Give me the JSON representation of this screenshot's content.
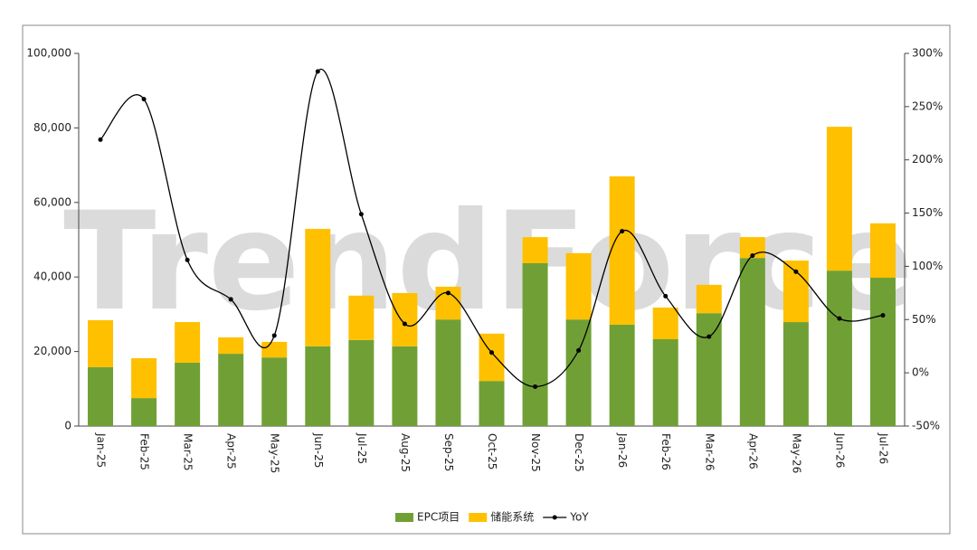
{
  "chart_data": {
    "type": "bar",
    "watermark": "TrendForce",
    "categories": [
      "Jan-25",
      "Feb-25",
      "Mar-25",
      "Apr-25",
      "May-25",
      "Jun-25",
      "Jul-25",
      "Aug-25",
      "Sep-25",
      "Oct-25",
      "Nov-25",
      "Dec-25",
      "Jan-26",
      "Feb-26",
      "Mar-26",
      "Apr-26",
      "May-26",
      "Jun-26",
      "Jul-26"
    ],
    "stacked": true,
    "series": [
      {
        "name": "EPC项目",
        "color": "#70a035",
        "values": [
          15.8,
          7.5,
          17.0,
          19.4,
          18.4,
          21.4,
          23.1,
          21.4,
          28.6,
          12.1,
          43.7,
          28.6,
          27.2,
          23.3,
          30.3,
          45.1,
          27.9,
          41.7,
          39.8
        ]
      },
      {
        "name": "储能系统",
        "color": "#ffc000",
        "values": [
          12.6,
          10.7,
          10.9,
          4.4,
          4.2,
          31.5,
          11.9,
          14.3,
          8.8,
          12.7,
          7.0,
          17.8,
          39.8,
          8.5,
          7.6,
          5.6,
          16.5,
          38.6,
          14.6
        ]
      },
      {
        "name": "YoY",
        "color": "#000000",
        "type": "line",
        "axis": "y2",
        "values": [
          219,
          257,
          106,
          69,
          35,
          283,
          149,
          46,
          75,
          19,
          -13,
          21,
          133,
          72,
          34,
          110,
          95,
          51,
          54
        ]
      }
    ],
    "value_scale": 1000,
    "ylim": [
      0,
      100000
    ],
    "yticks": [
      0,
      {
        "value": 20000,
        "label": "20,000"
      },
      {
        "value": 40000,
        "label": "40,000"
      },
      {
        "value": 60000,
        "label": "60,000"
      },
      {
        "value": 80000,
        "label": "80,000"
      },
      {
        "value": 100000,
        "label": "100,000"
      }
    ],
    "y2lim": [
      -50,
      300
    ],
    "y2ticks": [
      {
        "value": -50,
        "label": "-50%"
      },
      {
        "value": 0,
        "label": "0%"
      },
      {
        "value": 50,
        "label": "50%"
      },
      {
        "value": 100,
        "label": "100%"
      },
      {
        "value": 150,
        "label": "150%"
      },
      {
        "value": 200,
        "label": "200%"
      },
      {
        "value": 250,
        "label": "250%"
      },
      {
        "value": 300,
        "label": "300%"
      }
    ],
    "legend": "bottom"
  }
}
